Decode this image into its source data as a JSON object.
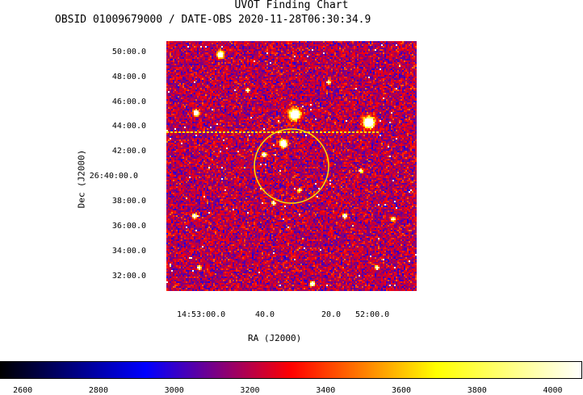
{
  "chart_data": {
    "type": "heatmap",
    "title": "UVOT Finding Chart",
    "subtitle": "OBSID 01009679000 / DATE-OBS 2020-11-28T06:30:34.9",
    "xlabel": "RA (J2000)",
    "ylabel": "Dec (J2000)",
    "x_ticks": [
      "14:53:00.0",
      "40.0",
      "20.0",
      "52:00.0"
    ],
    "y_ticks": [
      "50:00.0",
      "48:00.0",
      "46:00.0",
      "44:00.0",
      "42:00.0",
      "26:40:00.0",
      "38:00.0",
      "36:00.0",
      "34:00.0",
      "32:00.0"
    ],
    "colorbar": {
      "ticks": [
        "2600",
        "2800",
        "3000",
        "3200",
        "3400",
        "3600",
        "3800",
        "4000"
      ],
      "range": [
        2540,
        4080
      ],
      "colormap": [
        "#000000",
        "#0000ff",
        "#ff0000",
        "#ffff00",
        "#ffffff"
      ]
    },
    "overlays": {
      "circle_color": "#ffe000",
      "streak_color": "#ffe000"
    }
  }
}
